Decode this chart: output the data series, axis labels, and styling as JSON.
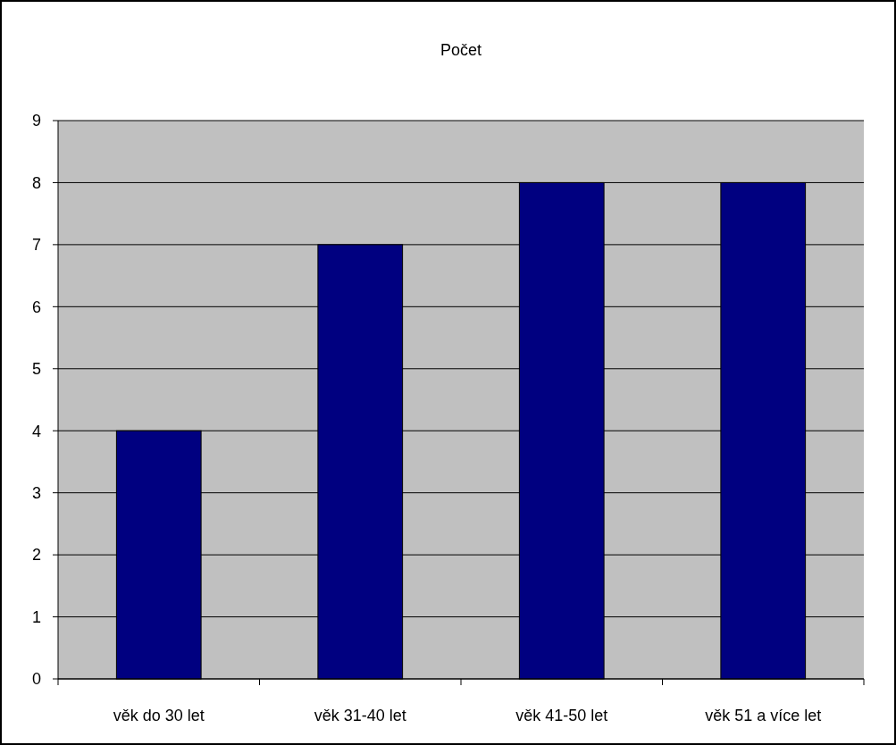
{
  "chart_data": {
    "type": "bar",
    "title": "Počet",
    "categories": [
      "věk do 30 let",
      "věk 31-40 let",
      "věk 41-50 let",
      "věk 51 a více let"
    ],
    "values": [
      4,
      7,
      8,
      8
    ],
    "color": "#000080",
    "ylim": [
      0,
      9
    ],
    "yticks": [
      0,
      1,
      2,
      3,
      4,
      5,
      6,
      7,
      8,
      9
    ],
    "grid": "y"
  }
}
